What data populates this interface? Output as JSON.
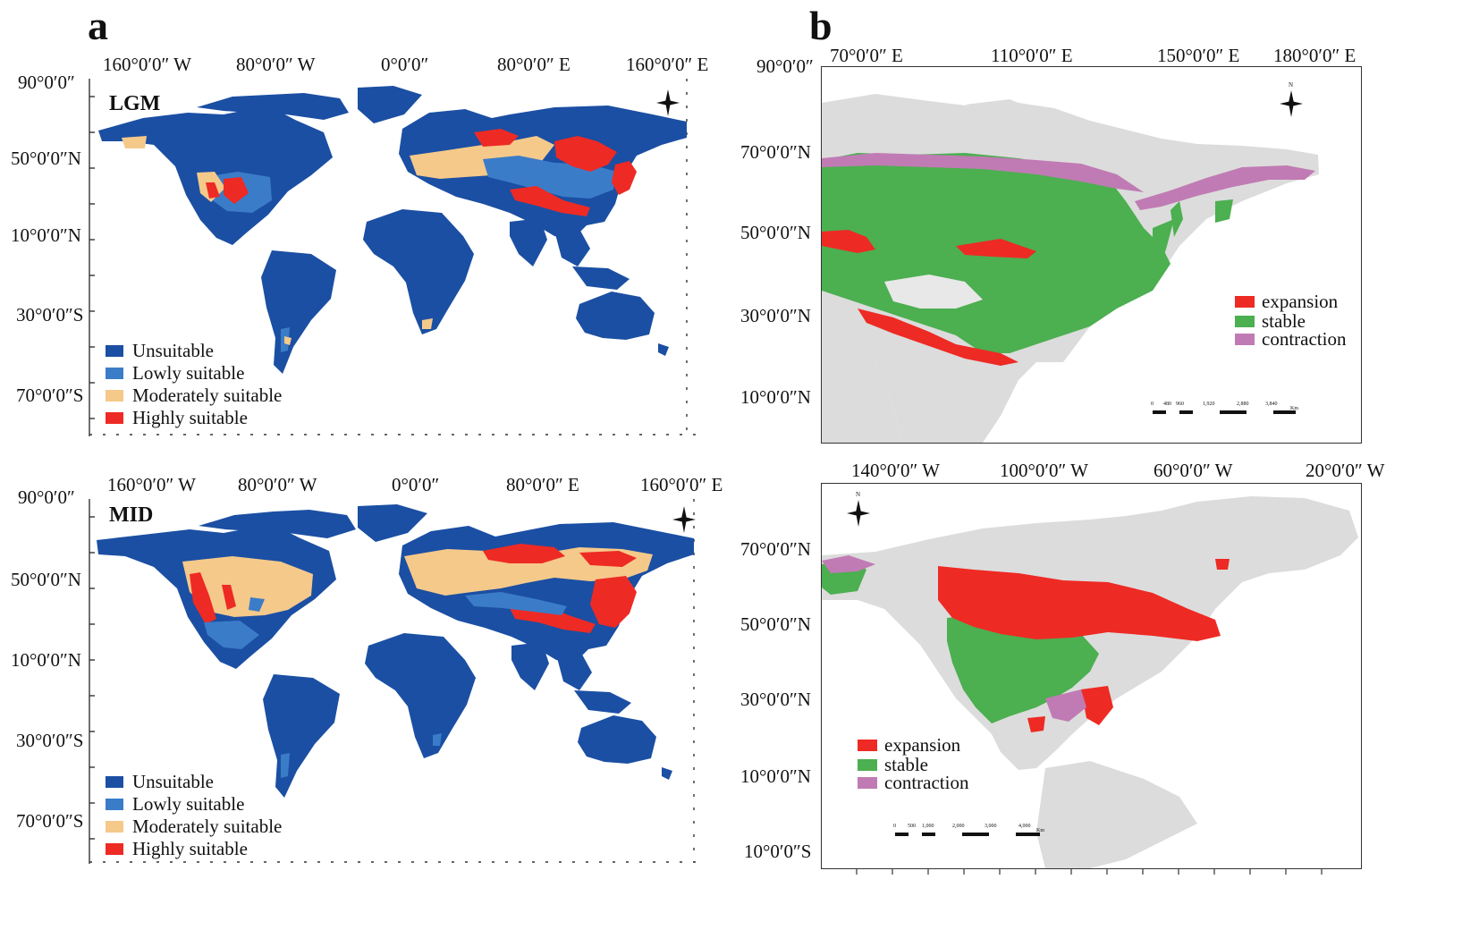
{
  "panels": {
    "a": {
      "letter": "a"
    },
    "b": {
      "letter": "b"
    }
  },
  "world_lgm": {
    "period": "LGM",
    "top_labels": [
      "160°0′0″ W",
      "80°0′0″ W",
      "0°0′0″",
      "80°0′0″ E",
      "160°0′0″ E"
    ],
    "left_labels": [
      "90°0′0″",
      "50°0′0″N",
      "10°0′0″N",
      "30°0′0″S",
      "70°0′0″S"
    ],
    "legend": [
      {
        "label": "Unsuitable",
        "color": "#1b4fa3"
      },
      {
        "label": "Lowly suitable",
        "color": "#3b7cc8"
      },
      {
        "label": "Moderately suitable",
        "color": "#f5c98a"
      },
      {
        "label": "Highly suitable",
        "color": "#ee2a24"
      }
    ]
  },
  "world_mid": {
    "period": "MID",
    "top_labels": [
      "160°0′0″ W",
      "80°0′0″ W",
      "0°0′0″",
      "80°0′0″ E",
      "160°0′0″ E"
    ],
    "left_labels": [
      "90°0′0″",
      "50°0′0″N",
      "10°0′0″N",
      "30°0′0″S",
      "70°0′0″S"
    ],
    "legend": [
      {
        "label": "Unsuitable",
        "color": "#1b4fa3"
      },
      {
        "label": "Lowly suitable",
        "color": "#3b7cc8"
      },
      {
        "label": "Moderately suitable",
        "color": "#f5c98a"
      },
      {
        "label": "Highly suitable",
        "color": "#ee2a24"
      }
    ]
  },
  "asia_map": {
    "top_labels": [
      "70°0′0″ E",
      "110°0′0″ E",
      "150°0′0″ E",
      "180°0′0″ E"
    ],
    "corner_label": "90°0′0″",
    "left_labels": [
      "70°0′0″N",
      "50°0′0″N",
      "30°0′0″N",
      "10°0′0″N"
    ],
    "legend": [
      {
        "label": "expansion",
        "color": "#ee2a24"
      },
      {
        "label": "stable",
        "color": "#4caf50"
      },
      {
        "label": "contraction",
        "color": "#c07bb4"
      }
    ],
    "scale_ticks": [
      "0",
      "480",
      "960",
      "1,920",
      "2,880",
      "3,840"
    ],
    "scale_unit": "Km",
    "north": "N"
  },
  "namerica_map": {
    "top_labels": [
      "140°0′0″ W",
      "100°0′0″ W",
      "60°0′0″ W",
      "20°0′0″ W"
    ],
    "left_labels": [
      "70°0′0″N",
      "50°0′0″N",
      "30°0′0″N",
      "10°0′0″N",
      "10°0′0″S"
    ],
    "legend": [
      {
        "label": "expansion",
        "color": "#ee2a24"
      },
      {
        "label": "stable",
        "color": "#4caf50"
      },
      {
        "label": "contraction",
        "color": "#c07bb4"
      }
    ],
    "scale_ticks": [
      "0",
      "500",
      "1,000",
      "2,000",
      "3,000",
      "4,000"
    ],
    "scale_unit": "Km",
    "north": "N"
  },
  "colors": {
    "ocean": "#ffffff",
    "land_grey": "#dcdcdc",
    "unsuitable": "#1b4fa3",
    "lowly": "#3b7cc8",
    "moderate": "#f5c98a",
    "high": "#ee2a24",
    "stable": "#4caf50",
    "contraction": "#c07bb4"
  }
}
